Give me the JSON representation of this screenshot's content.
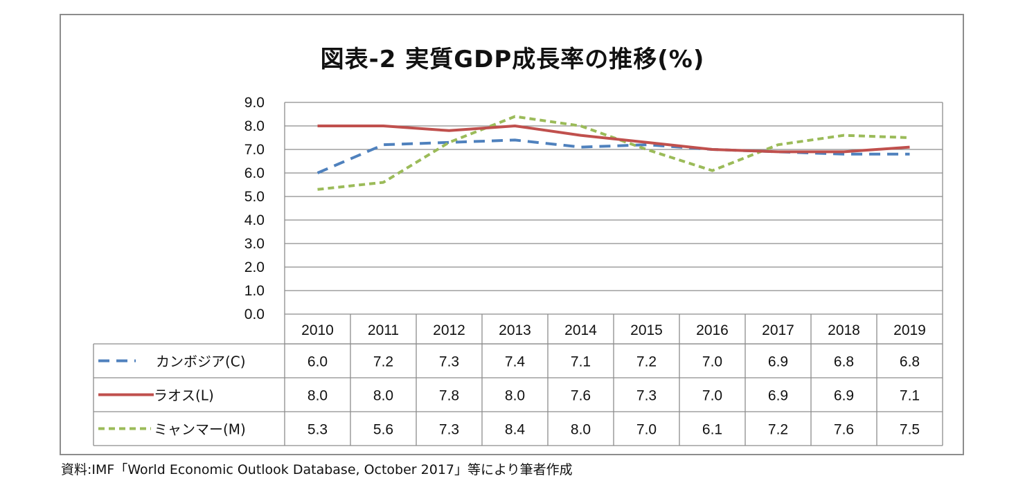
{
  "chart_data": {
    "type": "line",
    "title": "図表-2  実質GDP成長率の推移(%)",
    "xlabel": "",
    "ylabel": "",
    "ylim": [
      0,
      9
    ],
    "yticks": [
      "0.0",
      "1.0",
      "2.0",
      "3.0",
      "4.0",
      "5.0",
      "6.0",
      "7.0",
      "8.0",
      "9.0"
    ],
    "grid": true,
    "legend": "data-table-below",
    "categories": [
      "2010",
      "2011",
      "2012",
      "2013",
      "2014",
      "2015",
      "2016",
      "2017",
      "2018",
      "2019"
    ],
    "series": [
      {
        "name": "カンボジア(C)",
        "color": "#4f81bd",
        "style": "dashed",
        "values": [
          6.0,
          7.2,
          7.3,
          7.4,
          7.1,
          7.2,
          7.0,
          6.9,
          6.8,
          6.8
        ],
        "labels": [
          "6.0",
          "7.2",
          "7.3",
          "7.4",
          "7.1",
          "7.2",
          "7.0",
          "6.9",
          "6.8",
          "6.8"
        ]
      },
      {
        "name": "ラオス(L)",
        "color": "#c0504d",
        "style": "solid",
        "values": [
          8.0,
          8.0,
          7.8,
          8.0,
          7.6,
          7.3,
          7.0,
          6.9,
          6.9,
          7.1
        ],
        "labels": [
          "8.0",
          "8.0",
          "7.8",
          "8.0",
          "7.6",
          "7.3",
          "7.0",
          "6.9",
          "6.9",
          "7.1"
        ]
      },
      {
        "name": "ミャンマー(M)",
        "color": "#9bbb59",
        "style": "dotted",
        "values": [
          5.3,
          5.6,
          7.3,
          8.4,
          8.0,
          7.0,
          6.1,
          7.2,
          7.6,
          7.5
        ],
        "labels": [
          "5.3",
          "5.6",
          "7.3",
          "8.4",
          "8.0",
          "7.0",
          "6.1",
          "7.2",
          "7.6",
          "7.5"
        ]
      }
    ]
  },
  "source": "資料:IMF「World Economic Outlook Database, October 2017」等により筆者作成"
}
